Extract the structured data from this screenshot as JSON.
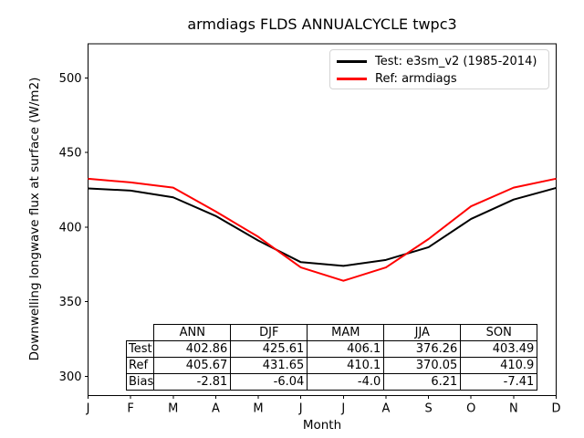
{
  "title": "armdiags FLDS ANNUALCYCLE twpc3",
  "axes": {
    "xlabel": "Month",
    "ylabel": "Downwelling longwave flux at surface (W/m2)",
    "yticks": [
      300,
      350,
      400,
      450,
      500
    ],
    "xticklabels": [
      "J",
      "F",
      "M",
      "A",
      "M",
      "J",
      "J",
      "A",
      "S",
      "O",
      "N",
      "D"
    ]
  },
  "legend": {
    "items": [
      {
        "label": "Test: e3sm_v2 (1985-2014)",
        "color": "#000000"
      },
      {
        "label": "Ref: armdiags",
        "color": "#ff0000"
      }
    ]
  },
  "chart_data": {
    "type": "line",
    "title": "armdiags FLDS ANNUALCYCLE twpc3",
    "xlabel": "Month",
    "ylabel": "Downwelling longwave flux at surface (W/m2)",
    "x": [
      "J",
      "F",
      "M",
      "A",
      "M",
      "J",
      "J",
      "A",
      "S",
      "O",
      "N",
      "D"
    ],
    "ylim": [
      287,
      523
    ],
    "grid": false,
    "legend_position": "upper right",
    "series": [
      {
        "name": "Test: e3sm_v2 (1985-2014)",
        "color": "#000000",
        "values": [
          426.0,
          424.5,
          420.0,
          407.5,
          391.0,
          376.5,
          374.0,
          378.0,
          386.5,
          405.5,
          418.5,
          426.3
        ]
      },
      {
        "name": "Ref: armdiags",
        "color": "#ff0000",
        "values": [
          432.5,
          430.0,
          426.5,
          410.5,
          393.5,
          373.0,
          364.0,
          373.0,
          392.0,
          414.0,
          426.5,
          432.5
        ]
      }
    ]
  },
  "table": {
    "columns": [
      "ANN",
      "DJF",
      "MAM",
      "JJA",
      "SON"
    ],
    "rows": [
      {
        "label": "Test",
        "values": [
          "402.86",
          "425.61",
          "406.1",
          "376.26",
          "403.49"
        ]
      },
      {
        "label": "Ref",
        "values": [
          "405.67",
          "431.65",
          "410.1",
          "370.05",
          "410.9"
        ]
      },
      {
        "label": "Bias",
        "values": [
          "-2.81",
          "-6.04",
          "-4.0",
          "6.21",
          "-7.41"
        ]
      }
    ]
  }
}
